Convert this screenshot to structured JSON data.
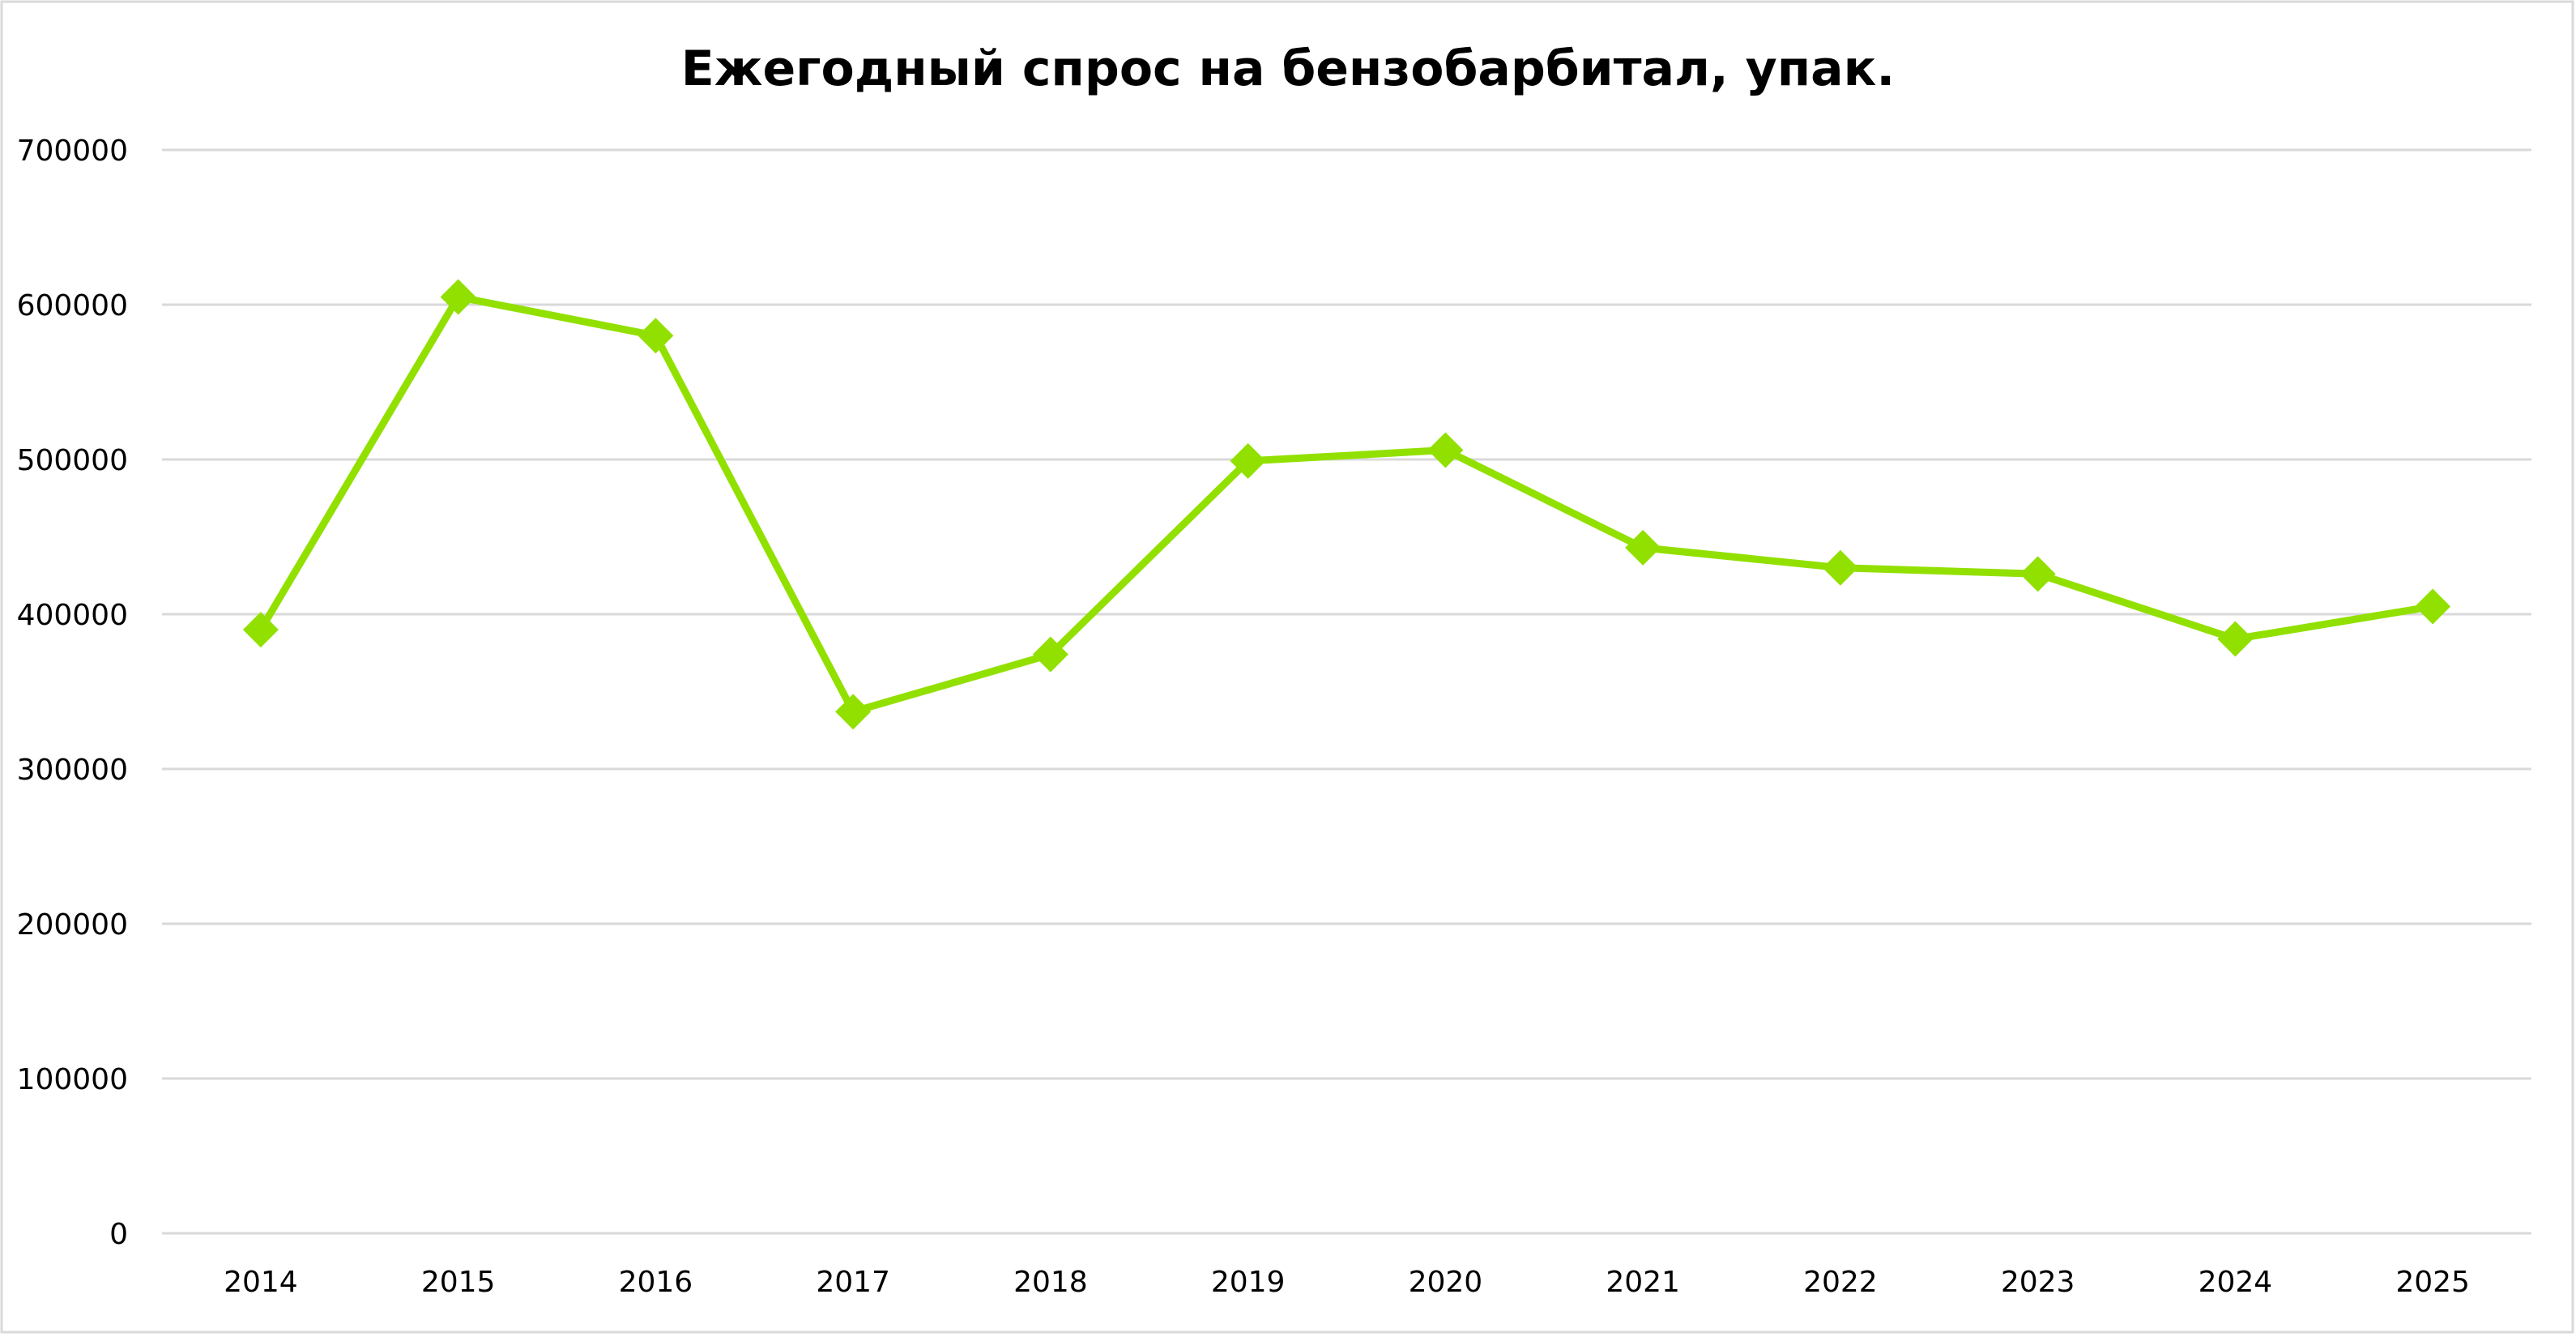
{
  "chart_data": {
    "type": "line",
    "title": "Ежегодный спрос на бензобарбитал, упак.",
    "xlabel": "",
    "ylabel": "",
    "categories": [
      "2014",
      "2015",
      "2016",
      "2017",
      "2018",
      "2019",
      "2020",
      "2021",
      "2022",
      "2023",
      "2024",
      "2025"
    ],
    "series": [
      {
        "color": "#92e000",
        "marker": "diamond",
        "values": [
          390000,
          605000,
          580000,
          337000,
          374000,
          499000,
          506000,
          443000,
          430000,
          426000,
          384000,
          405000
        ]
      }
    ],
    "ylim": [
      0,
      700000
    ],
    "yticks": [
      "0",
      "100000",
      "200000",
      "300000",
      "400000",
      "500000",
      "600000",
      "700000"
    ],
    "grid": true,
    "legend": "none"
  }
}
